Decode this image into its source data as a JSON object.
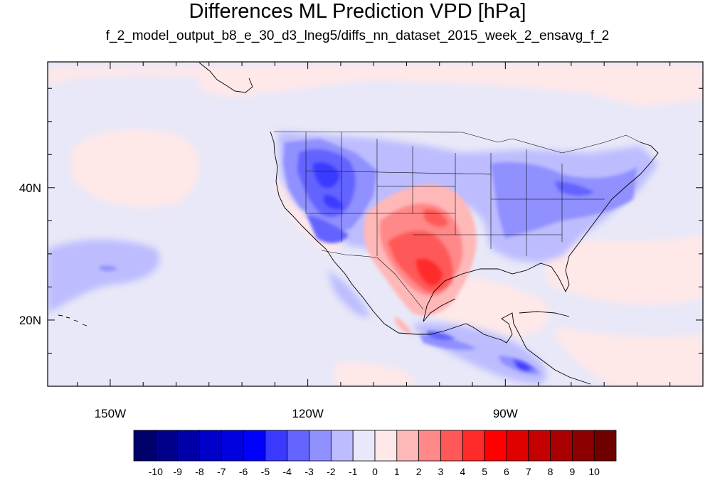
{
  "title": "Differences ML Prediction VPD [hPa]",
  "subtitle": "f_2_model_output_b8_e_30_d3_lneg5/diffs_nn_dataset_2015_week_2_ensavg_f_2",
  "map": {
    "lon_range": [
      -159.5,
      -60.0
    ],
    "lat_range": [
      10.0,
      59.0
    ],
    "lon_ticks": [
      {
        "value": -150,
        "label": "150W"
      },
      {
        "value": -120,
        "label": "120W"
      },
      {
        "value": -90,
        "label": "90W"
      }
    ],
    "lat_ticks": [
      {
        "value": 40,
        "label": "40N"
      },
      {
        "value": 20,
        "label": "20N"
      }
    ],
    "background_level": -1,
    "colors": {
      "ocean_background": "#e8e8f8",
      "coastline": "#000000"
    }
  },
  "colorbar": {
    "levels": [
      "-10",
      "-9",
      "-8",
      "-7",
      "-6",
      "-5",
      "-4",
      "-3",
      "-2",
      "-1",
      "0",
      "1",
      "2",
      "3",
      "4",
      "5",
      "6",
      "7",
      "8",
      "9",
      "10"
    ],
    "colors": [
      "#00006a",
      "#00008a",
      "#0000a8",
      "#0000c8",
      "#0000e0",
      "#0000ff",
      "#3a3aff",
      "#6464ff",
      "#9090ff",
      "#bcbcff",
      "#e8e8fa",
      "#ffe8e8",
      "#ffb8b8",
      "#ff8888",
      "#ff5858",
      "#ff2a2a",
      "#ff0000",
      "#e00000",
      "#c40000",
      "#a80000",
      "#8c0000",
      "#700000"
    ]
  }
}
